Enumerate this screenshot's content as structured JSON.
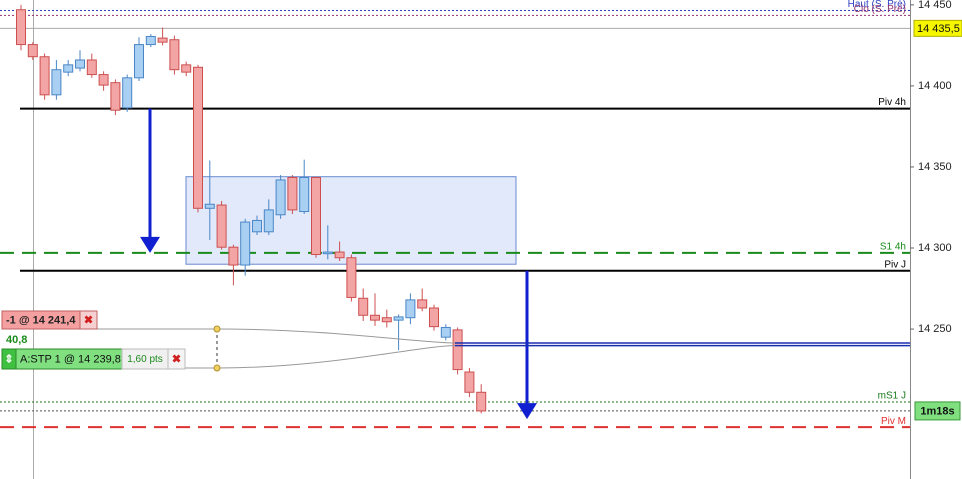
{
  "chart_data": {
    "type": "candlestick",
    "up_color": "#a9d0f2",
    "up_border": "#4a86c6",
    "down_color": "#f3a4a4",
    "down_border": "#cc5050",
    "ylim": [
      14157.5,
      14453
    ],
    "yticks": [
      {
        "value": 14450,
        "label": "14 450"
      },
      {
        "value": 14400,
        "label": "14 400"
      },
      {
        "value": 14350,
        "label": "14 350"
      },
      {
        "value": 14300,
        "label": "14 300"
      },
      {
        "value": 14250,
        "label": "14 250"
      }
    ],
    "candles": [
      {
        "open": 14447,
        "high": 14450,
        "low": 14422,
        "close": 14425.5
      },
      {
        "open": 14425.5,
        "high": 14427,
        "low": 14416,
        "close": 14418
      },
      {
        "open": 14418,
        "high": 14420,
        "low": 14391.5,
        "close": 14394.5
      },
      {
        "open": 14394.5,
        "high": 14416,
        "low": 14391.5,
        "close": 14410
      },
      {
        "open": 14408.5,
        "high": 14416,
        "low": 14406,
        "close": 14413
      },
      {
        "open": 14411,
        "high": 14422,
        "low": 14409,
        "close": 14416
      },
      {
        "open": 14416,
        "high": 14420,
        "low": 14405,
        "close": 14407
      },
      {
        "open": 14407,
        "high": 14409,
        "low": 14397,
        "close": 14400.5
      },
      {
        "open": 14402,
        "high": 14404,
        "low": 14382,
        "close": 14385
      },
      {
        "open": 14386.5,
        "high": 14407,
        "low": 14384,
        "close": 14405
      },
      {
        "open": 14405,
        "high": 14430,
        "low": 14403,
        "close": 14425.5
      },
      {
        "open": 14425.5,
        "high": 14432,
        "low": 14424,
        "close": 14430.5
      },
      {
        "open": 14429.5,
        "high": 14436,
        "low": 14425,
        "close": 14427
      },
      {
        "open": 14428.5,
        "high": 14431,
        "low": 14407,
        "close": 14410
      },
      {
        "open": 14413,
        "high": 14415,
        "low": 14406,
        "close": 14408.5
      },
      {
        "open": 14411.5,
        "high": 14413,
        "low": 14322,
        "close": 14324.5
      },
      {
        "open": 14324.5,
        "high": 14354,
        "low": 14305,
        "close": 14327
      },
      {
        "open": 14326.5,
        "high": 14329,
        "low": 14299,
        "close": 14300.5
      },
      {
        "open": 14300.5,
        "high": 14302,
        "low": 14277,
        "close": 14289.5
      },
      {
        "open": 14289.5,
        "high": 14318,
        "low": 14283,
        "close": 14316
      },
      {
        "open": 14310,
        "high": 14320,
        "low": 14308,
        "close": 14317
      },
      {
        "open": 14310,
        "high": 14330,
        "low": 14308,
        "close": 14323.5
      },
      {
        "open": 14320.5,
        "high": 14345,
        "low": 14318,
        "close": 14342
      },
      {
        "open": 14343.5,
        "high": 14345,
        "low": 14321,
        "close": 14323.5
      },
      {
        "open": 14322.5,
        "high": 14354.5,
        "low": 14321,
        "close": 14343.5
      },
      {
        "open": 14343.5,
        "high": 14344,
        "low": 14294,
        "close": 14296
      },
      {
        "open": 14296.5,
        "high": 14314,
        "low": 14293,
        "close": 14297.5
      },
      {
        "open": 14297.5,
        "high": 14304,
        "low": 14292,
        "close": 14294
      },
      {
        "open": 14294,
        "high": 14296,
        "low": 14267,
        "close": 14269.5
      },
      {
        "open": 14269,
        "high": 14275,
        "low": 14255,
        "close": 14258.5
      },
      {
        "open": 14258.5,
        "high": 14272,
        "low": 14252,
        "close": 14255.5
      },
      {
        "open": 14257,
        "high": 14262,
        "low": 14251,
        "close": 14254.5
      },
      {
        "open": 14255.5,
        "high": 14259,
        "low": 14237,
        "close": 14257.5
      },
      {
        "open": 14257,
        "high": 14272,
        "low": 14253,
        "close": 14268
      },
      {
        "open": 14268,
        "high": 14275,
        "low": 14261,
        "close": 14263
      },
      {
        "open": 14263,
        "high": 14265,
        "low": 14249,
        "close": 14251.5
      },
      {
        "open": 14245,
        "high": 14253,
        "low": 14243,
        "close": 14251
      },
      {
        "open": 14249.5,
        "high": 14251,
        "low": 14222,
        "close": 14225
      },
      {
        "open": 14223.5,
        "high": 14226,
        "low": 14208,
        "close": 14211
      },
      {
        "open": 14211,
        "high": 14216,
        "low": 14198,
        "close": 14199.5
      }
    ],
    "levels": [
      {
        "name": "Piv 4h",
        "value": 14386,
        "color": "#000000",
        "style": "solid"
      },
      {
        "name": "S1 4h",
        "value": 14297,
        "color": "#1a8a1a",
        "style": "dashed"
      },
      {
        "name": "Piv J",
        "value": 14286,
        "color": "#000000",
        "style": "solid"
      },
      {
        "name": "mS1 J",
        "value": 14205,
        "color": "#1a7a1a",
        "style": "dotted"
      },
      {
        "name": "Piv M",
        "value": 14189.5,
        "color": "#e03030",
        "style": "dashed"
      },
      {
        "name": "Haut (S. Pré)",
        "value": 14446.5,
        "color": "#3040c0",
        "style": "dotted"
      },
      {
        "name": "Clo (S. Pré)",
        "value": 14443.5,
        "color": "#903070",
        "style": "dotted"
      }
    ],
    "zone": {
      "top": 14344,
      "bottom": 14290
    },
    "last_price": {
      "value": 14435.5,
      "label": "14 435,5"
    },
    "current_price": 14199.5,
    "countdown": "1m18s",
    "orders": [
      {
        "label": "-1 @ 14 241,4",
        "value": 14241.4
      },
      {
        "label": "A:STP  1 @ 14 239,8",
        "value": 14239.8
      }
    ],
    "order_distance": "40,8",
    "order_gap": "1,60 pts"
  }
}
